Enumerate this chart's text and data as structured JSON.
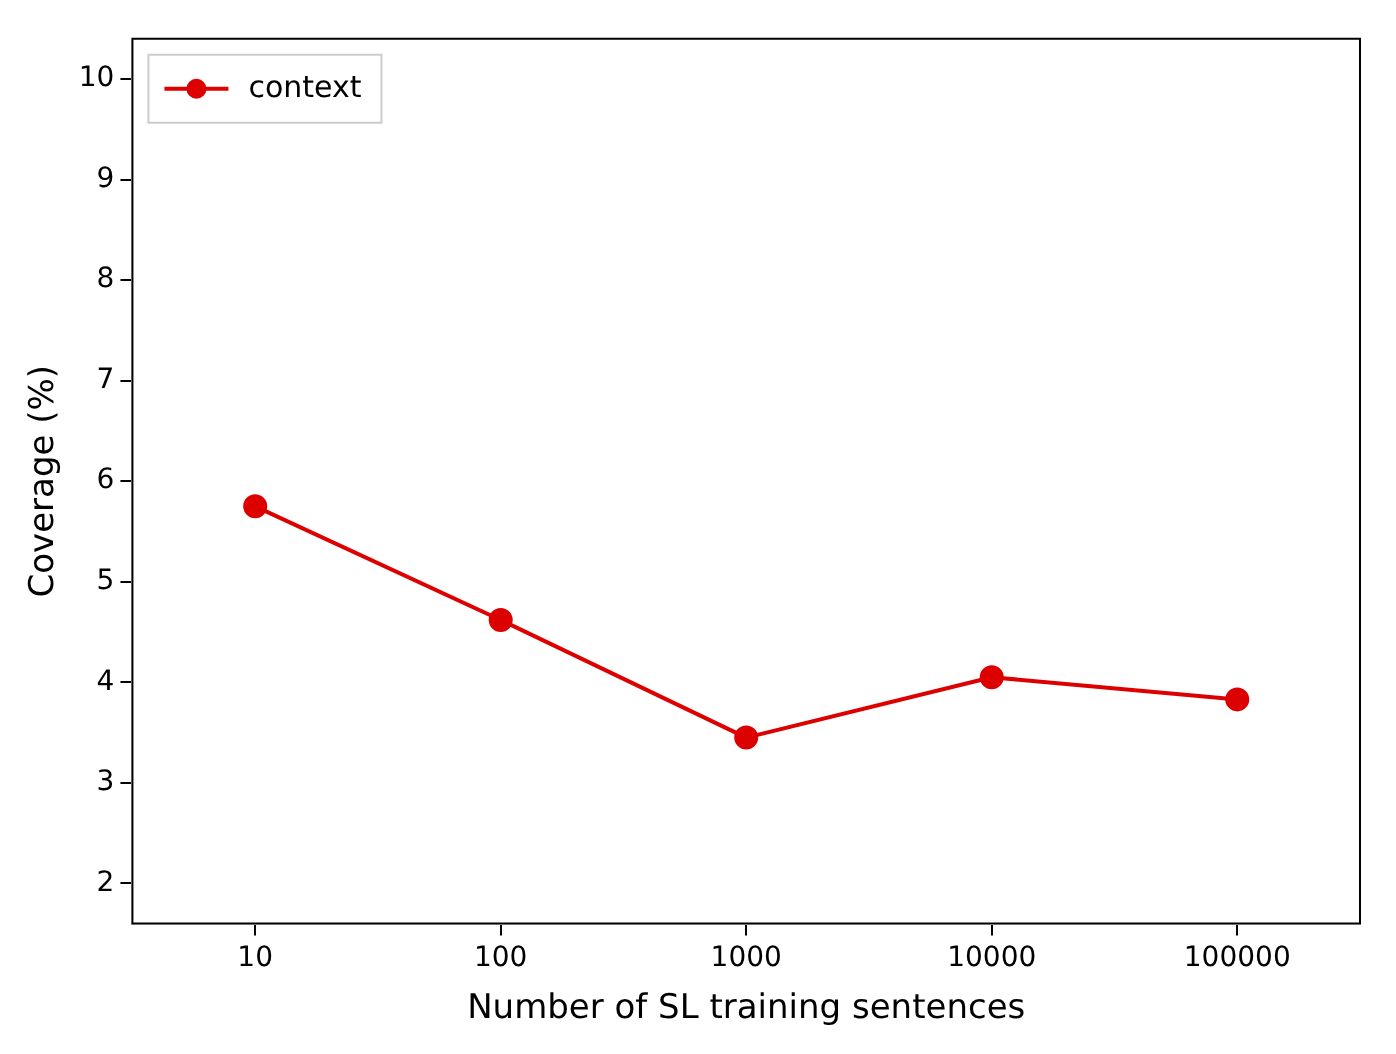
{
  "chart_data": {
    "type": "line",
    "xlabel": "Number of SL training sentences",
    "ylabel": "Coverage (%)",
    "categories": [
      "10",
      "100",
      "1000",
      "10000",
      "100000"
    ],
    "series": [
      {
        "name": "context",
        "color": "#dd0000",
        "values": [
          5.75,
          4.62,
          3.45,
          4.05,
          3.83
        ]
      }
    ],
    "ylim": [
      1.6,
      10.4
    ],
    "yticks": [
      2,
      3,
      4,
      5,
      6,
      7,
      8,
      9,
      10
    ],
    "grid": false,
    "legend": "top left",
    "marker": "circle",
    "line_style": "solid"
  }
}
